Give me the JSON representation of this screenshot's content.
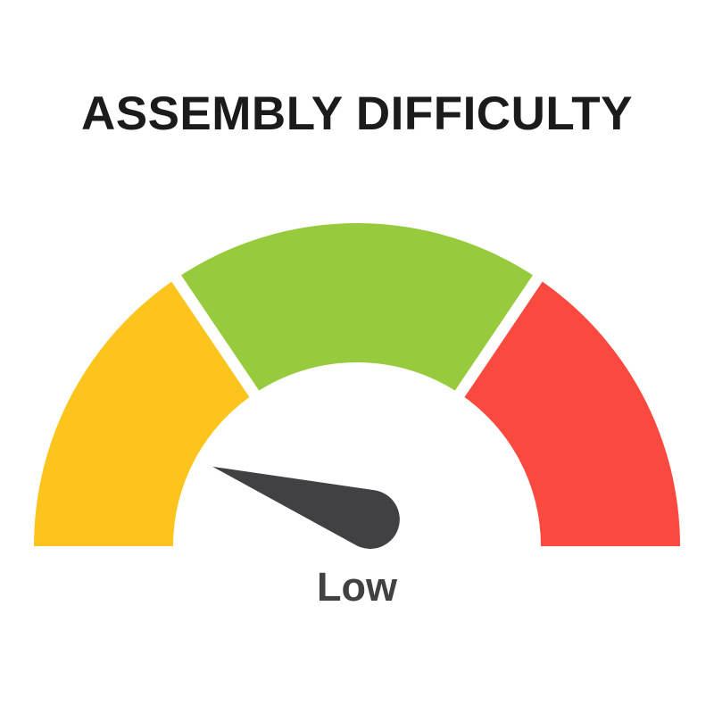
{
  "title": "ASSEMBLY DIFFICULTY",
  "colors": {
    "background": "#ffffff",
    "title": "#1b1b1b",
    "value_label": "#414144",
    "divider": "#ffffff"
  },
  "chart_data": {
    "type": "gauge",
    "title": "ASSEMBLY DIFFICULTY",
    "arc_span_deg": 180,
    "segments": [
      {
        "position": "left",
        "color": "#FCC41D",
        "start_angle_deg": 180,
        "end_angle_deg": 124
      },
      {
        "position": "top",
        "color": "#97CB3D",
        "start_angle_deg": 124,
        "end_angle_deg": 56
      },
      {
        "position": "right",
        "color": "#FA4A40",
        "start_angle_deg": 56,
        "end_angle_deg": 0
      }
    ],
    "needle": {
      "value_label": "Low",
      "angle_deg": 161.5,
      "color": "#414144"
    }
  }
}
